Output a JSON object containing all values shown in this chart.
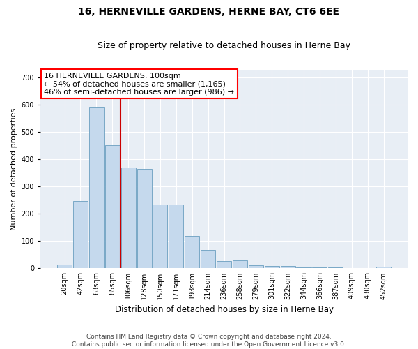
{
  "title": "16, HERNEVILLE GARDENS, HERNE BAY, CT6 6EE",
  "subtitle": "Size of property relative to detached houses in Herne Bay",
  "xlabel": "Distribution of detached houses by size in Herne Bay",
  "ylabel": "Number of detached properties",
  "footer1": "Contains HM Land Registry data © Crown copyright and database right 2024.",
  "footer2": "Contains public sector information licensed under the Open Government Licence v3.0.",
  "annotation_line1": "16 HERNEVILLE GARDENS: 100sqm",
  "annotation_line2": "← 54% of detached houses are smaller (1,165)",
  "annotation_line3": "46% of semi-detached houses are larger (986) →",
  "bar_color": "#c5d9ed",
  "bar_edge_color": "#6a9ec0",
  "background_color": "#e8eef5",
  "grid_color": "#ffffff",
  "vline_color": "#cc0000",
  "categories": [
    "20sqm",
    "42sqm",
    "63sqm",
    "85sqm",
    "106sqm",
    "128sqm",
    "150sqm",
    "171sqm",
    "193sqm",
    "214sqm",
    "236sqm",
    "258sqm",
    "279sqm",
    "301sqm",
    "322sqm",
    "344sqm",
    "366sqm",
    "387sqm",
    "409sqm",
    "430sqm",
    "452sqm"
  ],
  "values": [
    15,
    248,
    590,
    452,
    370,
    365,
    235,
    235,
    120,
    68,
    28,
    30,
    12,
    8,
    8,
    4,
    4,
    3,
    2,
    1,
    5
  ],
  "ylim": [
    0,
    730
  ],
  "yticks": [
    0,
    100,
    200,
    300,
    400,
    500,
    600,
    700
  ],
  "vline_index": 4,
  "title_fontsize": 10,
  "subtitle_fontsize": 9,
  "ylabel_fontsize": 8,
  "xlabel_fontsize": 8.5,
  "tick_fontsize": 7,
  "annotation_fontsize": 8,
  "footer_fontsize": 6.5
}
